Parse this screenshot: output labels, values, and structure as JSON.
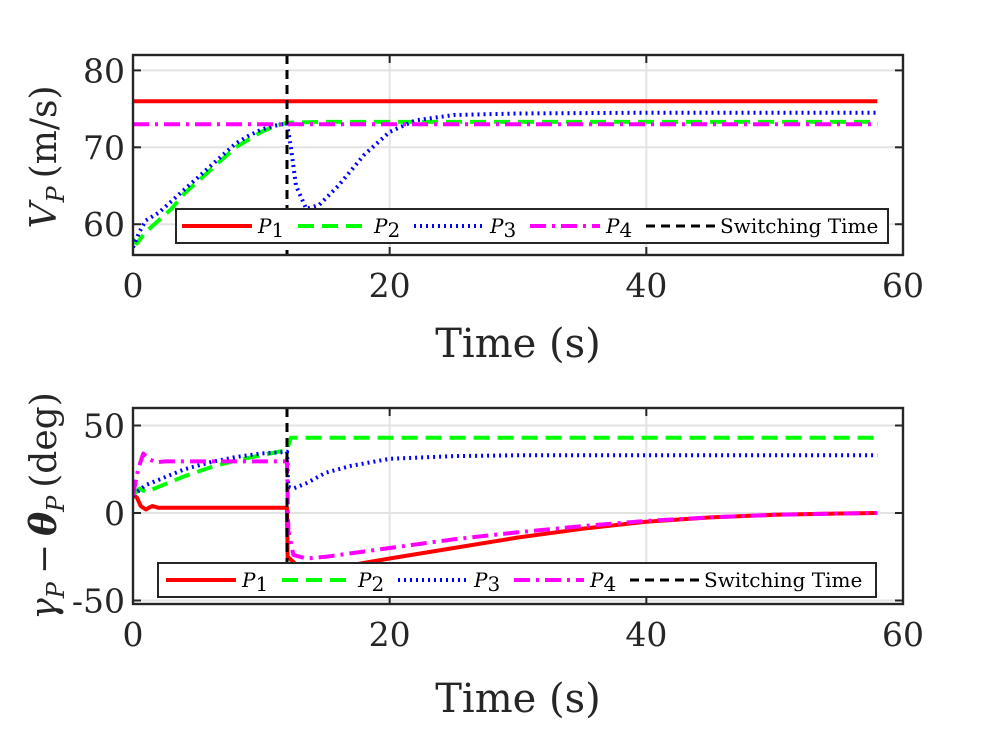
{
  "chart_data": [
    {
      "type": "line",
      "id": "top",
      "xlabel": "Time (s)",
      "ylabel": "V_P (m/s)",
      "xlim": [
        0,
        60
      ],
      "ylim": [
        56,
        82
      ],
      "xticks": [
        0,
        20,
        40,
        60
      ],
      "yticks": [
        60,
        70,
        80
      ],
      "grid": true,
      "legend_position": "bottom",
      "switch_time": 12,
      "series": [
        {
          "name": "P1",
          "label_sym": "P",
          "label_sub": "1",
          "color": "#ff0000",
          "style": "solid",
          "x": [
            0,
            12,
            58
          ],
          "y": [
            76,
            76,
            76
          ]
        },
        {
          "name": "P2",
          "label_sym": "P",
          "label_sub": "2",
          "color": "#00ff00",
          "style": "dash",
          "x": [
            0,
            0.3,
            1,
            2,
            3,
            4,
            5,
            6,
            7,
            8,
            9,
            10,
            11,
            12,
            15,
            20,
            30,
            40,
            50,
            58
          ],
          "y": [
            58,
            57.5,
            59,
            60.5,
            62,
            64,
            65.5,
            67,
            68.5,
            70,
            71,
            72,
            72.7,
            73.2,
            73.3,
            73.3,
            73.3,
            73.3,
            73.3,
            73.3
          ]
        },
        {
          "name": "P3",
          "label_sym": "P",
          "label_sub": "3",
          "color": "#0000ff",
          "style": "dot",
          "x": [
            0,
            0.5,
            1,
            2,
            3,
            4,
            5,
            6,
            7,
            8,
            9,
            10,
            11,
            12,
            12.3,
            12.7,
            13.5,
            14.5,
            16,
            18,
            20,
            22,
            25,
            30,
            40,
            50,
            58
          ],
          "y": [
            57,
            59,
            60.5,
            61.5,
            63,
            64.5,
            66,
            67.5,
            69,
            70.5,
            71.5,
            72.3,
            72.8,
            73.1,
            70,
            65,
            62,
            62.5,
            65,
            69,
            72,
            73.5,
            74.2,
            74.4,
            74.5,
            74.5,
            74.5
          ]
        },
        {
          "name": "P4",
          "label_sym": "P",
          "label_sub": "4",
          "color": "#ff00ff",
          "style": "dashdot",
          "x": [
            0,
            12,
            58
          ],
          "y": [
            73,
            73,
            73
          ]
        },
        {
          "name": "Switching Time",
          "label_sym": "",
          "label_sub": "",
          "color": "#000000",
          "style": "dash",
          "x": [
            12,
            12
          ],
          "y": [
            82,
            56
          ]
        }
      ],
      "legend": {
        "p_sym": "P",
        "sub1": "1",
        "sub2": "2",
        "sub3": "3",
        "sub4": "4",
        "switching": "Switching Time"
      }
    },
    {
      "type": "line",
      "id": "bottom",
      "xlabel": "Time (s)",
      "ylabel": "γ_P − θ_P (deg)",
      "xlim": [
        0,
        60
      ],
      "ylim": [
        -52,
        60
      ],
      "xticks": [
        0,
        20,
        40,
        60
      ],
      "yticks": [
        -50,
        0,
        50
      ],
      "grid": true,
      "legend_position": "bottom",
      "switch_time": 12,
      "series": [
        {
          "name": "P1",
          "label_sym": "P",
          "label_sub": "1",
          "color": "#ff0000",
          "style": "solid",
          "x": [
            0,
            0.3,
            0.6,
            1,
            1.5,
            2,
            3,
            5,
            8,
            12,
            12.05,
            12.5,
            13,
            14,
            16,
            20,
            25,
            30,
            35,
            40,
            45,
            50,
            55,
            58
          ],
          "y": [
            10,
            9,
            4,
            2,
            4,
            3,
            3,
            3,
            3,
            3,
            -25,
            -28,
            -32,
            -32.5,
            -31,
            -26,
            -20,
            -14,
            -9,
            -5,
            -2.5,
            -1,
            -0.3,
            0
          ]
        },
        {
          "name": "P2",
          "label_sym": "P",
          "label_sub": "2",
          "color": "#00ff00",
          "style": "dash",
          "x": [
            0,
            0.5,
            1,
            2,
            4,
            6,
            8,
            10,
            12,
            12.3,
            13,
            20,
            30,
            40,
            50,
            58
          ],
          "y": [
            10,
            14,
            12,
            15,
            21,
            26,
            30,
            33,
            36,
            43,
            43,
            43,
            43,
            43,
            43,
            43
          ]
        },
        {
          "name": "P3",
          "label_sym": "P",
          "label_sub": "3",
          "color": "#0000ff",
          "style": "dot",
          "x": [
            0,
            0.5,
            1,
            2,
            3,
            4,
            6,
            8,
            10,
            12,
            12.1,
            12.5,
            13.5,
            15,
            17,
            20,
            25,
            30,
            40,
            50,
            58
          ],
          "y": [
            10,
            13,
            16,
            19,
            22,
            25,
            29,
            32,
            34,
            35,
            15,
            14,
            17,
            23,
            27,
            31,
            32.5,
            33,
            33,
            33,
            33
          ]
        },
        {
          "name": "P4",
          "label_sym": "P",
          "label_sub": "4",
          "color": "#ff00ff",
          "style": "dashdot",
          "x": [
            0,
            0.4,
            0.8,
            1.2,
            1.8,
            2.5,
            4,
            8,
            12,
            12.1,
            12.5,
            13.5,
            15,
            20,
            25,
            30,
            35,
            40,
            45,
            50,
            55,
            58
          ],
          "y": [
            10,
            25,
            34,
            31,
            29,
            29.5,
            29.5,
            29.5,
            29.5,
            -10,
            -24,
            -26,
            -25,
            -20,
            -15,
            -11,
            -7.5,
            -4.5,
            -2.5,
            -1,
            -0.3,
            0
          ]
        },
        {
          "name": "Switching Time",
          "label_sym": "",
          "label_sub": "",
          "color": "#000000",
          "style": "dash",
          "x": [
            12,
            12
          ],
          "y": [
            60,
            -52
          ]
        }
      ],
      "legend": {
        "p_sym": "P",
        "sub1": "1",
        "sub2": "2",
        "sub3": "3",
        "sub4": "4",
        "switching": "Switching Time"
      }
    }
  ],
  "labels": {
    "top_xlabel": "Time (s)",
    "bottom_xlabel": "Time (s)",
    "top_ylabel_sym": "V",
    "top_ylabel_sub": "P",
    "top_ylabel_unit": "(m/s)",
    "bottom_ylabel_gamma": "γ",
    "bottom_ylabel_sub1": "P",
    "bottom_ylabel_minus": "−",
    "bottom_ylabel_theta": "θ",
    "bottom_ylabel_sub2": "P",
    "bottom_ylabel_unit": "(deg)"
  }
}
